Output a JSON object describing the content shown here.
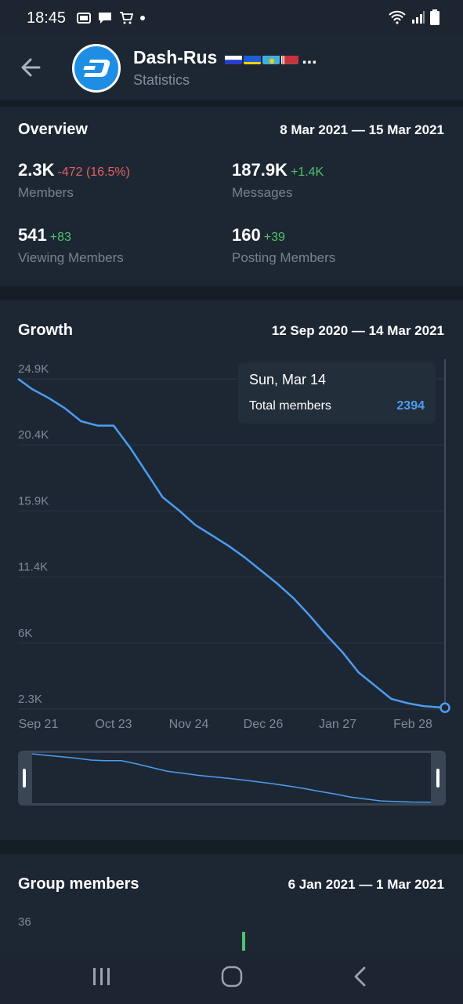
{
  "status_bar": {
    "time": "18:45",
    "icons": [
      "gb-icon",
      "chat-icon",
      "cart-icon",
      "dot-icon"
    ],
    "right_icons": [
      "wifi-icon",
      "signal-icon",
      "battery-icon"
    ]
  },
  "header": {
    "title": "Dash-Rus",
    "subtitle": "Statistics",
    "flags": [
      "flag-ru",
      "flag-ua",
      "flag-kz",
      "flag-by"
    ],
    "title_suffix": "..."
  },
  "overview": {
    "title": "Overview",
    "range": "8 Mar 2021 — 15 Mar 2021",
    "members": {
      "value": "2.3K",
      "delta": "-472 (16.5%)",
      "label": "Members"
    },
    "messages": {
      "value": "187.9K",
      "delta": "+1.4K",
      "label": "Messages"
    },
    "viewing": {
      "value": "541",
      "delta": "+83",
      "label": "Viewing Members"
    },
    "posting": {
      "value": "160",
      "delta": "+39",
      "label": "Posting Members"
    }
  },
  "growth": {
    "title": "Growth",
    "range": "12 Sep 2020 — 14 Mar 2021",
    "tooltip": {
      "date": "Sun, Mar 14",
      "series_name": "Total members",
      "value": "2394"
    }
  },
  "chart_data": {
    "type": "line",
    "title": "Growth",
    "y_ticks": [
      "24.9K",
      "20.4K",
      "15.9K",
      "11.4K",
      "6K",
      "2.3K"
    ],
    "x_ticks": [
      "Sep 21",
      "Oct 23",
      "Nov 24",
      "Dec 26",
      "Jan 27",
      "Feb 28"
    ],
    "ylim": [
      2300,
      24900
    ],
    "grid": true,
    "series": [
      {
        "name": "Total members",
        "color": "#4b9df2",
        "x": [
          "2020-09-12",
          "2020-09-18",
          "2020-09-25",
          "2020-10-02",
          "2020-10-09",
          "2020-10-16",
          "2020-10-23",
          "2020-10-30",
          "2020-11-06",
          "2020-11-13",
          "2020-11-20",
          "2020-11-27",
          "2020-12-04",
          "2020-12-11",
          "2020-12-18",
          "2020-12-25",
          "2021-01-01",
          "2021-01-08",
          "2021-01-15",
          "2021-01-22",
          "2021-01-29",
          "2021-02-05",
          "2021-02-12",
          "2021-02-19",
          "2021-02-26",
          "2021-03-05",
          "2021-03-14"
        ],
        "values": [
          24900,
          24200,
          23600,
          22900,
          22000,
          21700,
          21700,
          20200,
          18500,
          16800,
          15900,
          14900,
          14200,
          13500,
          12700,
          11800,
          10900,
          9900,
          8700,
          7400,
          6200,
          4800,
          3900,
          3000,
          2700,
          2500,
          2394
        ]
      }
    ]
  },
  "group_members": {
    "title": "Group members",
    "range": "6 Jan 2021 — 1 Mar 2021",
    "y_tick": "36"
  },
  "colors": {
    "background": "#151d26",
    "card": "#1d2733",
    "accent": "#4b9df2",
    "positive": "#4fc26a",
    "negative": "#e65f5f"
  }
}
